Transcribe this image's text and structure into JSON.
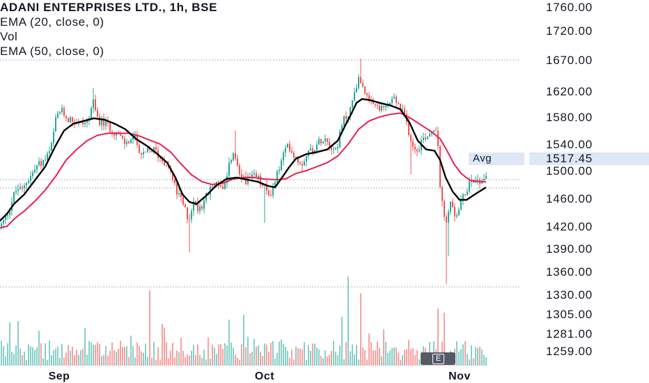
{
  "legend": {
    "title": "ADANI ENTERPRISES LTD., 1h, BSE",
    "ema20": "EMA (20, close, 0)",
    "vol": "Vol",
    "ema50": "EMA (50, close, 0)"
  },
  "avg_label": "Avg",
  "avg_price": "1517.45",
  "e_button": "E",
  "colors": {
    "up": "#26a69a",
    "down": "#ef5350",
    "ema20": "#000000",
    "ema50": "#e91e4f",
    "grid": "#d1d4dc"
  },
  "chart_data": {
    "type": "candlestick",
    "title": "ADANI ENTERPRISES LTD., 1h, BSE",
    "y_ticks": [
      "1760.00",
      "1720.00",
      "1670.00",
      "1620.00",
      "1580.00",
      "1540.00",
      "1500.00",
      "1460.00",
      "1420.00",
      "1390.00",
      "1360.00",
      "1330.00",
      "1305.00",
      "1281.00",
      "1259.00"
    ],
    "x_ticks": [
      "Sep",
      "Oct",
      "Nov"
    ],
    "ylim": [
      1255,
      1770
    ],
    "reference_lines": [
      1670,
      1487,
      1475,
      1340
    ],
    "avg": 1517.45,
    "series": [
      {
        "name": "EMA (20, close, 0)",
        "values": [
          [
            -10,
            1430
          ],
          [
            0,
            1428
          ],
          [
            10,
            1438
          ],
          [
            20,
            1452
          ],
          [
            35,
            1466
          ],
          [
            50,
            1486
          ],
          [
            65,
            1506
          ],
          [
            80,
            1538
          ],
          [
            92,
            1560
          ],
          [
            105,
            1570
          ],
          [
            120,
            1574
          ],
          [
            135,
            1578
          ],
          [
            150,
            1576
          ],
          [
            165,
            1570
          ],
          [
            180,
            1562
          ],
          [
            195,
            1548
          ],
          [
            210,
            1538
          ],
          [
            225,
            1526
          ],
          [
            240,
            1512
          ],
          [
            252,
            1490
          ],
          [
            262,
            1466
          ],
          [
            272,
            1455
          ],
          [
            282,
            1452
          ],
          [
            295,
            1463
          ],
          [
            310,
            1478
          ],
          [
            325,
            1488
          ],
          [
            340,
            1490
          ],
          [
            355,
            1487
          ],
          [
            370,
            1484
          ],
          [
            385,
            1478
          ],
          [
            395,
            1476
          ],
          [
            405,
            1490
          ],
          [
            415,
            1505
          ],
          [
            425,
            1518
          ],
          [
            440,
            1525
          ],
          [
            455,
            1528
          ],
          [
            470,
            1532
          ],
          [
            485,
            1545
          ],
          [
            497,
            1570
          ],
          [
            505,
            1586
          ],
          [
            512,
            1602
          ],
          [
            520,
            1608
          ],
          [
            532,
            1606
          ],
          [
            545,
            1602
          ],
          [
            560,
            1598
          ],
          [
            575,
            1592
          ],
          [
            588,
            1572
          ],
          [
            600,
            1545
          ],
          [
            612,
            1532
          ],
          [
            624,
            1530
          ],
          [
            632,
            1516
          ],
          [
            640,
            1490
          ],
          [
            650,
            1470
          ],
          [
            660,
            1458
          ],
          [
            670,
            1458
          ],
          [
            682,
            1466
          ],
          [
            698,
            1476
          ]
        ]
      },
      {
        "name": "EMA (50, close, 0)",
        "values": [
          [
            -10,
            1420
          ],
          [
            0,
            1418
          ],
          [
            10,
            1420
          ],
          [
            22,
            1432
          ],
          [
            35,
            1442
          ],
          [
            50,
            1456
          ],
          [
            65,
            1472
          ],
          [
            80,
            1492
          ],
          [
            95,
            1516
          ],
          [
            110,
            1532
          ],
          [
            125,
            1545
          ],
          [
            140,
            1553
          ],
          [
            155,
            1556
          ],
          [
            170,
            1556
          ],
          [
            185,
            1556
          ],
          [
            200,
            1552
          ],
          [
            215,
            1546
          ],
          [
            230,
            1540
          ],
          [
            245,
            1528
          ],
          [
            260,
            1510
          ],
          [
            275,
            1494
          ],
          [
            290,
            1484
          ],
          [
            305,
            1480
          ],
          [
            320,
            1482
          ],
          [
            335,
            1488
          ],
          [
            350,
            1490
          ],
          [
            365,
            1490
          ],
          [
            380,
            1488
          ],
          [
            395,
            1487
          ],
          [
            410,
            1488
          ],
          [
            425,
            1496
          ],
          [
            440,
            1500
          ],
          [
            455,
            1506
          ],
          [
            470,
            1512
          ],
          [
            485,
            1522
          ],
          [
            500,
            1540
          ],
          [
            515,
            1562
          ],
          [
            530,
            1574
          ],
          [
            545,
            1580
          ],
          [
            560,
            1584
          ],
          [
            575,
            1586
          ],
          [
            590,
            1578
          ],
          [
            605,
            1568
          ],
          [
            620,
            1558
          ],
          [
            632,
            1548
          ],
          [
            642,
            1530
          ],
          [
            652,
            1510
          ],
          [
            662,
            1496
          ],
          [
            675,
            1486
          ],
          [
            690,
            1484
          ],
          [
            698,
            1484
          ]
        ]
      }
    ],
    "price_path": [
      [
        0,
        1420
      ],
      [
        6,
        1430
      ],
      [
        12,
        1445
      ],
      [
        18,
        1462
      ],
      [
        24,
        1475
      ],
      [
        30,
        1470
      ],
      [
        36,
        1485
      ],
      [
        42,
        1490
      ],
      [
        48,
        1500
      ],
      [
        54,
        1510
      ],
      [
        60,
        1512
      ],
      [
        66,
        1520
      ],
      [
        72,
        1530
      ],
      [
        78,
        1570
      ],
      [
        84,
        1590
      ],
      [
        90,
        1586
      ],
      [
        96,
        1578
      ],
      [
        102,
        1576
      ],
      [
        108,
        1574
      ],
      [
        114,
        1570
      ],
      [
        120,
        1572
      ],
      [
        126,
        1575
      ],
      [
        132,
        1605
      ],
      [
        138,
        1580
      ],
      [
        144,
        1572
      ],
      [
        150,
        1570
      ],
      [
        156,
        1565
      ],
      [
        162,
        1560
      ],
      [
        168,
        1555
      ],
      [
        174,
        1545
      ],
      [
        180,
        1540
      ],
      [
        186,
        1546
      ],
      [
        192,
        1550
      ],
      [
        198,
        1536
      ],
      [
        204,
        1520
      ],
      [
        210,
        1528
      ],
      [
        216,
        1532
      ],
      [
        222,
        1530
      ],
      [
        228,
        1520
      ],
      [
        234,
        1515
      ],
      [
        240,
        1510
      ],
      [
        246,
        1490
      ],
      [
        252,
        1470
      ],
      [
        258,
        1460
      ],
      [
        264,
        1445
      ],
      [
        270,
        1430
      ],
      [
        276,
        1455
      ],
      [
        282,
        1448
      ],
      [
        288,
        1450
      ],
      [
        294,
        1462
      ],
      [
        300,
        1470
      ],
      [
        306,
        1480
      ],
      [
        312,
        1485
      ],
      [
        318,
        1470
      ],
      [
        324,
        1480
      ],
      [
        330,
        1520
      ],
      [
        336,
        1525
      ],
      [
        342,
        1490
      ],
      [
        348,
        1490
      ],
      [
        354,
        1486
      ],
      [
        360,
        1488
      ],
      [
        366,
        1492
      ],
      [
        372,
        1484
      ],
      [
        378,
        1476
      ],
      [
        384,
        1466
      ],
      [
        390,
        1472
      ],
      [
        396,
        1492
      ],
      [
        402,
        1510
      ],
      [
        408,
        1530
      ],
      [
        414,
        1538
      ],
      [
        420,
        1526
      ],
      [
        426,
        1518
      ],
      [
        432,
        1510
      ],
      [
        438,
        1524
      ],
      [
        444,
        1530
      ],
      [
        450,
        1535
      ],
      [
        456,
        1540
      ],
      [
        462,
        1552
      ],
      [
        468,
        1548
      ],
      [
        474,
        1540
      ],
      [
        480,
        1530
      ],
      [
        486,
        1548
      ],
      [
        492,
        1575
      ],
      [
        498,
        1582
      ],
      [
        504,
        1598
      ],
      [
        510,
        1630
      ],
      [
        516,
        1640
      ],
      [
        522,
        1625
      ],
      [
        528,
        1600
      ],
      [
        534,
        1596
      ],
      [
        540,
        1598
      ],
      [
        546,
        1590
      ],
      [
        552,
        1595
      ],
      [
        558,
        1600
      ],
      [
        564,
        1610
      ],
      [
        570,
        1600
      ],
      [
        576,
        1590
      ],
      [
        582,
        1574
      ],
      [
        588,
        1552
      ],
      [
        594,
        1532
      ],
      [
        600,
        1536
      ],
      [
        606,
        1548
      ],
      [
        612,
        1554
      ],
      [
        618,
        1558
      ],
      [
        624,
        1570
      ],
      [
        628,
        1540
      ],
      [
        632,
        1460
      ],
      [
        636,
        1440
      ],
      [
        640,
        1420
      ],
      [
        644,
        1455
      ],
      [
        648,
        1445
      ],
      [
        652,
        1435
      ],
      [
        656,
        1440
      ],
      [
        660,
        1450
      ],
      [
        664,
        1460
      ],
      [
        668,
        1470
      ],
      [
        672,
        1482
      ],
      [
        676,
        1490
      ],
      [
        680,
        1488
      ],
      [
        684,
        1486
      ],
      [
        688,
        1485
      ],
      [
        692,
        1490
      ],
      [
        696,
        1492
      ],
      [
        699,
        1494
      ]
    ],
    "volume_note": "volume histogram below price, bars colored by candle direction"
  }
}
